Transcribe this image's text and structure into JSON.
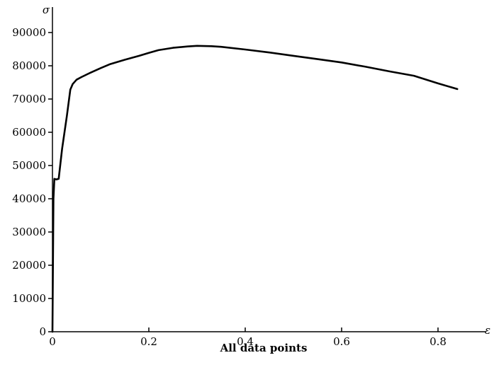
{
  "chart_data": {
    "type": "line",
    "title": "",
    "xlabel": "ε",
    "ylabel": "σ",
    "caption": "All data points",
    "xlim": [
      0,
      0.85
    ],
    "ylim": [
      0,
      90000
    ],
    "xticks": [
      0,
      0.2,
      0.4,
      0.6,
      0.8
    ],
    "xtick_labels": [
      "0",
      "0.2",
      "0.4",
      "0.6",
      "0.8"
    ],
    "yticks": [
      0,
      10000,
      20000,
      30000,
      40000,
      50000,
      60000,
      70000,
      80000,
      90000
    ],
    "ytick_labels": [
      "0",
      "10000",
      "20000",
      "30000",
      "40000",
      "50000",
      "60000",
      "70000",
      "80000",
      "90000"
    ],
    "grid": false,
    "series": [
      {
        "x": [
          0,
          0.002,
          0.004,
          0.008,
          0.013,
          0.02,
          0.03,
          0.037,
          0.042,
          0.05,
          0.06,
          0.08,
          0.1,
          0.12,
          0.15,
          0.18,
          0.2,
          0.22,
          0.25,
          0.28,
          0.3,
          0.33,
          0.35,
          0.4,
          0.45,
          0.5,
          0.55,
          0.6,
          0.65,
          0.7,
          0.75,
          0.8,
          0.84
        ],
        "y": [
          0,
          40000,
          46000,
          45800,
          46000,
          55000,
          65000,
          72800,
          74500,
          75800,
          76600,
          78000,
          79300,
          80500,
          81800,
          83000,
          83900,
          84700,
          85400,
          85800,
          86000,
          85900,
          85700,
          84900,
          84000,
          83000,
          82000,
          81000,
          79700,
          78300,
          77000,
          74700,
          73000
        ]
      }
    ]
  }
}
